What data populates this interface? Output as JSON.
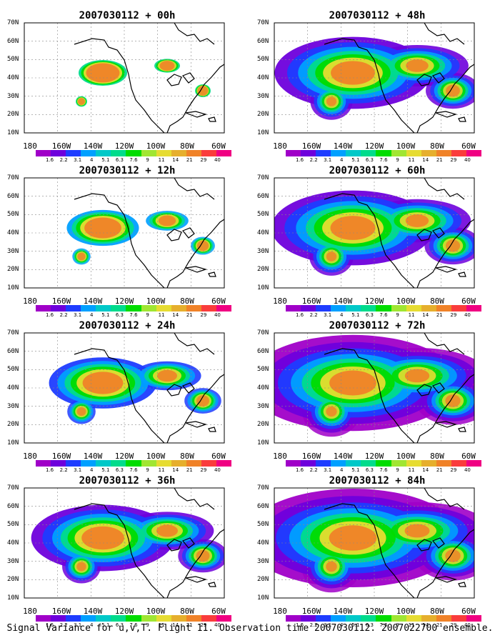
{
  "caption": "Signal Variance for u,v,T. Flight 11. Observation time 2007030112. 2007022700 ensemble.",
  "lon_labels": [
    "180",
    "160W",
    "140W",
    "120W",
    "100W",
    "80W",
    "60W"
  ],
  "lat_labels": [
    "10N",
    "20N",
    "30N",
    "40N",
    "50N",
    "60N",
    "70N"
  ],
  "colorbar": {
    "labels": [
      "1.6",
      "2.2",
      "3.1",
      "4",
      "5.1",
      "6.3",
      "7.6",
      "9",
      "11",
      "14",
      "21",
      "29",
      "40"
    ],
    "colors": [
      "#a000c8",
      "#6e00dc",
      "#1e3cff",
      "#00a0ff",
      "#00c8c8",
      "#00dc8c",
      "#00dc00",
      "#a0e632",
      "#e6dc32",
      "#e6af2d",
      "#f08228",
      "#fa3c3c",
      "#f00082"
    ]
  },
  "panels": [
    {
      "title": "2007030112 + 00h",
      "strength": 0.25
    },
    {
      "title": "2007030112 + 48h",
      "strength": 0.78
    },
    {
      "title": "2007030112 + 12h",
      "strength": 0.42
    },
    {
      "title": "2007030112 + 60h",
      "strength": 0.82
    },
    {
      "title": "2007030112 + 24h",
      "strength": 0.6
    },
    {
      "title": "2007030112 + 72h",
      "strength": 0.92
    },
    {
      "title": "2007030112 + 36h",
      "strength": 0.7
    },
    {
      "title": "2007030112 + 84h",
      "strength": 0.95
    }
  ]
}
